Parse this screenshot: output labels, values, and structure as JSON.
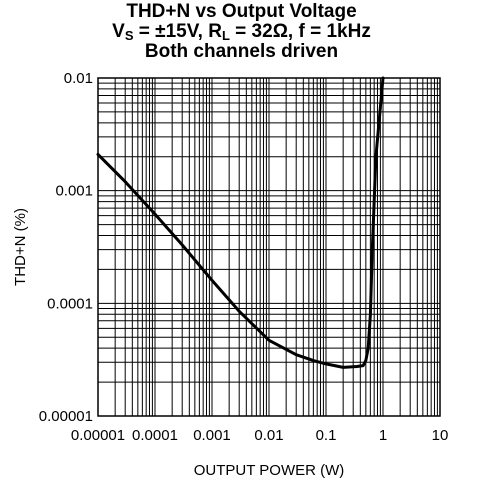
{
  "title": {
    "line1": "THD+N vs Output Voltage",
    "line2_parts": [
      "V",
      "S",
      " = ±15V, R",
      "L",
      " = 32Ω, f = 1kHz"
    ],
    "line3": "Both channels driven"
  },
  "chart_data": {
    "type": "line",
    "title": "THD+N vs Output Voltage",
    "subtitle": "VS = ±15V, RL = 32Ω, f = 1kHz — Both channels driven",
    "xlabel": "OUTPUT POWER (W)",
    "ylabel": "THD+N (%)",
    "x_scale": "log",
    "y_scale": "log",
    "xlim": [
      1e-05,
      10
    ],
    "ylim": [
      1e-05,
      0.01
    ],
    "x_ticks": [
      "0.00001",
      "0.0001",
      "0.001",
      "0.01",
      "0.1",
      "1",
      "10"
    ],
    "y_ticks": [
      "0.01",
      "0.001",
      "0.0001",
      "0.00001"
    ],
    "grid": true,
    "series": [
      {
        "color": "#000000",
        "x": [
          1e-05,
          3e-05,
          0.0001,
          0.0003,
          0.001,
          0.003,
          0.01,
          0.03,
          0.06,
          0.1,
          0.2,
          0.35,
          0.45,
          0.5,
          0.55,
          0.6,
          0.65,
          0.75,
          1.0
        ],
        "y": [
          0.0021,
          0.0012,
          0.00062,
          0.00033,
          0.00016,
          8.5e-05,
          4.7e-05,
          3.5e-05,
          3.1e-05,
          2.9e-05,
          2.7e-05,
          2.75e-05,
          2.8e-05,
          3.1e-05,
          4e-05,
          8e-05,
          0.0003,
          0.002,
          0.01
        ]
      }
    ]
  }
}
